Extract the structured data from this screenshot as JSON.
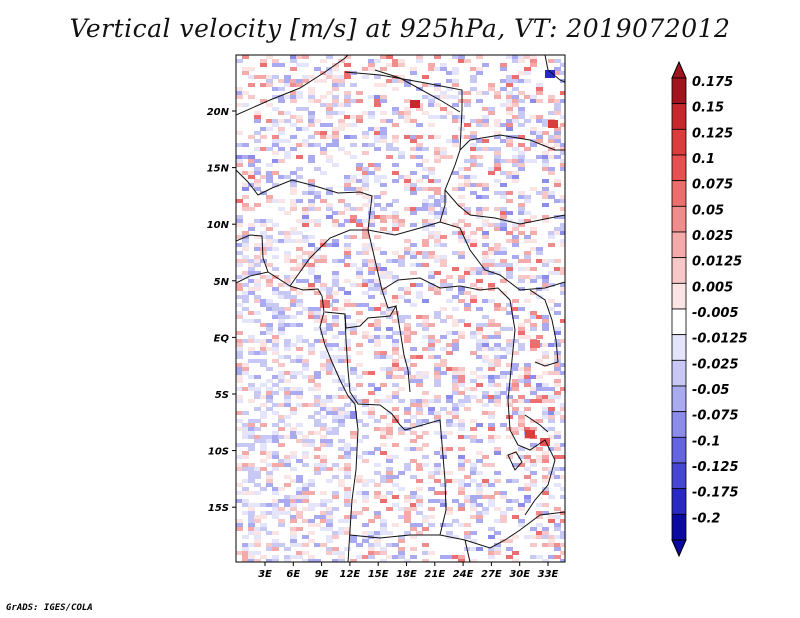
{
  "title": "Vertical velocity [m/s] at 925hPa, VT: 2019072012",
  "footer": "GrADS: IGES/COLA",
  "map": {
    "lon_labels": [
      "3E",
      "6E",
      "9E",
      "12E",
      "15E",
      "18E",
      "21E",
      "24E",
      "27E",
      "30E",
      "33E"
    ],
    "lat_labels": [
      "20N",
      "15N",
      "10N",
      "5N",
      "EQ",
      "5S",
      "10S",
      "15S"
    ]
  },
  "colorbar": {
    "levels": [
      "0.175",
      "0.15",
      "0.125",
      "0.1",
      "0.075",
      "0.05",
      "0.025",
      "0.0125",
      "0.005",
      "-0.005",
      "-0.0125",
      "-0.025",
      "-0.05",
      "-0.075",
      "-0.1",
      "-0.125",
      "-0.175",
      "-0.2"
    ],
    "colors": [
      "#a0141e",
      "#c8282d",
      "#dc3c3c",
      "#e65050",
      "#ec6e6e",
      "#f08c8c",
      "#f5aaaa",
      "#f8c8c8",
      "#fbe4e4",
      "#ffffff",
      "#e4e4fb",
      "#c8c8f5",
      "#aaaaf0",
      "#8c8ceb",
      "#6464e1",
      "#4646d2",
      "#2828c3",
      "#0a0aa0"
    ]
  }
}
